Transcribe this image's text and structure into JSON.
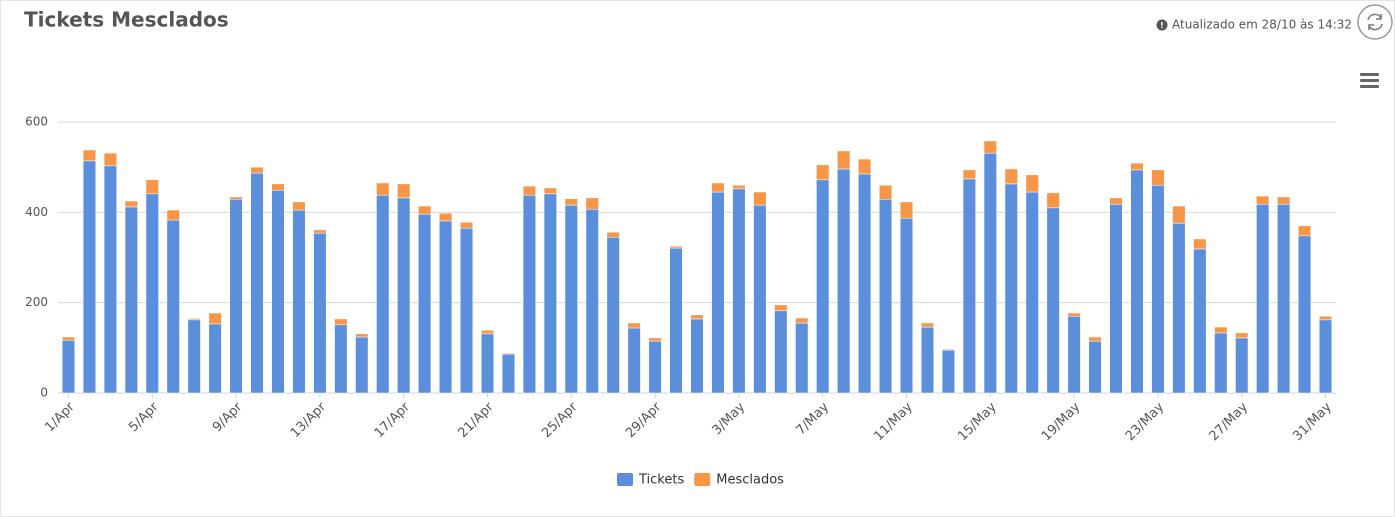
{
  "header": {
    "title": "Tickets Mesclados",
    "updated": "Atualizado em 28/10 às 14:32"
  },
  "chart_data": {
    "type": "stacked-bar",
    "categories": [
      "1/Apr",
      null,
      null,
      null,
      "5/Apr",
      null,
      null,
      null,
      "9/Apr",
      null,
      null,
      null,
      "13/Apr",
      null,
      null,
      null,
      "17/Apr",
      null,
      null,
      null,
      "21/Apr",
      null,
      null,
      null,
      "25/Apr",
      null,
      null,
      null,
      "29/Apr",
      null,
      null,
      null,
      "3/May",
      null,
      null,
      null,
      "7/May",
      null,
      null,
      null,
      "11/May",
      null,
      null,
      null,
      "15/May",
      null,
      null,
      null,
      "19/May",
      null,
      null,
      null,
      "23/May",
      null,
      null,
      null,
      "27/May",
      null,
      null,
      null,
      "31/May"
    ],
    "series": [
      {
        "name": "Tickets",
        "color": "#5b8fdc",
        "values": [
          117,
          514,
          503,
          412,
          441,
          383,
          162,
          153,
          429,
          487,
          449,
          405,
          354,
          151,
          124,
          438,
          432,
          396,
          381,
          365,
          131,
          86,
          438,
          441,
          416,
          407,
          345,
          144,
          115,
          321,
          164,
          445,
          452,
          416,
          182,
          155,
          472,
          496,
          485,
          429,
          387,
          146,
          95,
          474,
          531,
          463,
          445,
          410,
          170,
          115,
          418,
          494,
          460,
          376,
          319,
          133,
          122,
          418,
          418,
          348,
          162
        ]
      },
      {
        "name": "Mesclados",
        "color": "#f79646",
        "values": [
          7,
          24,
          28,
          13,
          31,
          22,
          3,
          24,
          5,
          13,
          14,
          18,
          7,
          13,
          7,
          27,
          31,
          18,
          17,
          13,
          8,
          2,
          20,
          13,
          14,
          25,
          11,
          11,
          7,
          4,
          9,
          20,
          8,
          29,
          13,
          11,
          33,
          40,
          33,
          31,
          36,
          9,
          2,
          20,
          27,
          33,
          38,
          33,
          7,
          9,
          14,
          15,
          34,
          38,
          22,
          13,
          11,
          18,
          16,
          22,
          8
        ]
      }
    ],
    "ylim": [
      0,
      600
    ],
    "yticks": [
      0,
      200,
      400,
      600
    ],
    "grid": true,
    "legend": "bottom"
  }
}
